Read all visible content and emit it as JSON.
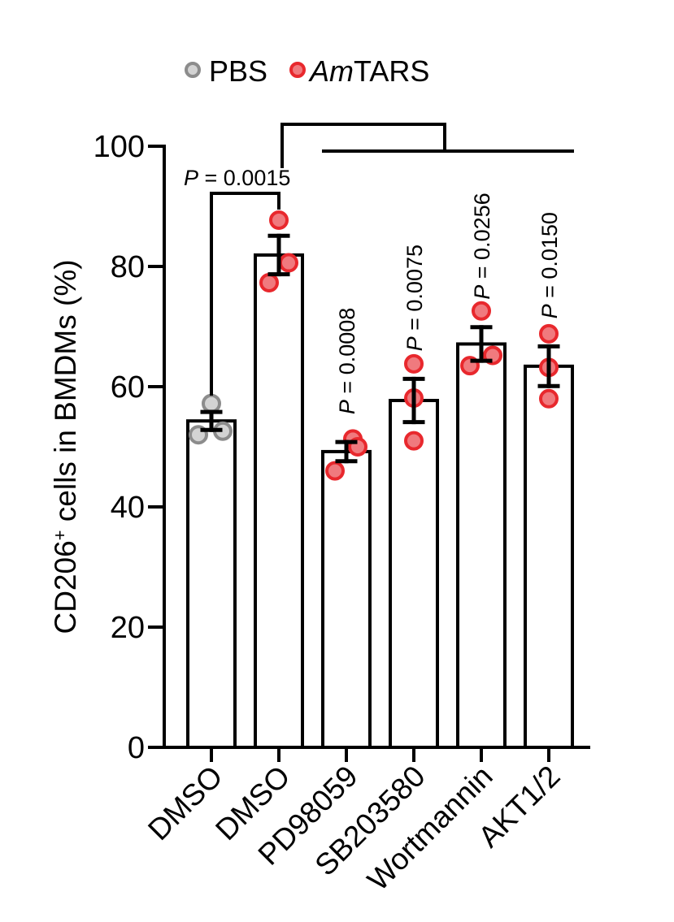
{
  "chart_data": {
    "type": "bar",
    "categories": [
      "DMSO",
      "DMSO",
      "PD98059",
      "SB203580",
      "Wortmannin",
      "AKT1/2"
    ],
    "groups": [
      "PBS",
      "AmTARS",
      "AmTARS",
      "AmTARS",
      "AmTARS",
      "AmTARS"
    ],
    "values": [
      54.3,
      81.9,
      49.2,
      57.7,
      67.1,
      63.4
    ],
    "sem": [
      1.5,
      3.2,
      1.6,
      3.6,
      2.8,
      3.3
    ],
    "points": [
      [
        57.2,
        52.0,
        52.6
      ],
      [
        87.7,
        77.3,
        80.6
      ],
      [
        51.3,
        46.0,
        50.0
      ],
      [
        63.8,
        51.0,
        58.1
      ],
      [
        72.6,
        63.5,
        65.2
      ],
      [
        68.8,
        63.2,
        58.0
      ]
    ],
    "ylabel_prefix": "CD206",
    "ylabel_sup": "+",
    "ylabel_suffix": " cells in BMDMs (%)",
    "ylim": [
      0,
      100
    ],
    "yticks": [
      0,
      20,
      40,
      60,
      80,
      100
    ],
    "legend": [
      {
        "name": "PBS",
        "color": "#8c8c8c",
        "fill": "#d3d3d3"
      },
      {
        "name_italic": "Am",
        "name_rest": "TARS",
        "color": "#e8282d",
        "fill": "#f07a7e"
      }
    ],
    "pvalues": [
      {
        "label": "P",
        "text": " = 0.0015",
        "target": 0
      },
      {
        "label": "P",
        "text": " = 0.0008",
        "target": 2
      },
      {
        "label": "P",
        "text": " = 0.0075",
        "target": 3
      },
      {
        "label": "P",
        "text": " = 0.0256",
        "target": 4
      },
      {
        "label": "P",
        "text": " = 0.0150",
        "target": 5
      }
    ]
  }
}
